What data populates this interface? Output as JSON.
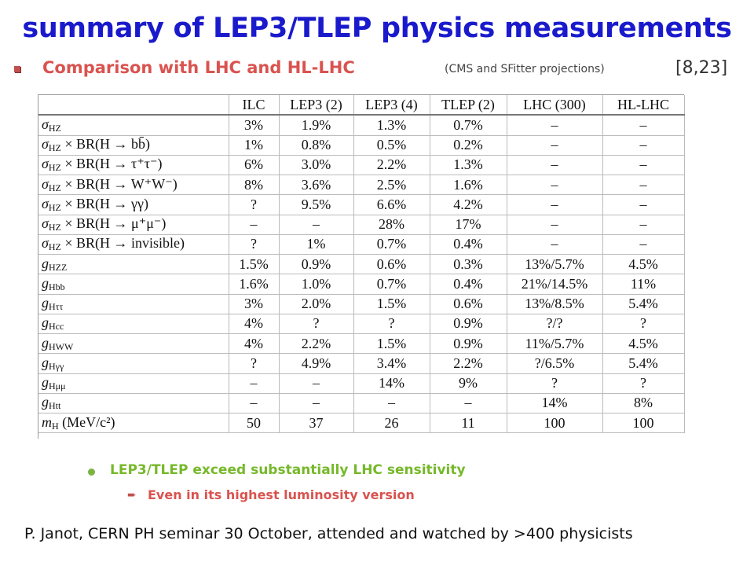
{
  "title": "summary of LEP3/TLEP physics measurements",
  "subhead": {
    "label": "Comparison with LHC and HL-LHC",
    "projection_note": "(CMS and SFitter projections)",
    "references": "[8,23]"
  },
  "chart_data": {
    "type": "table",
    "columns": [
      "",
      "ILC",
      "LEP3 (2)",
      "LEP3 (4)",
      "TLEP (2)",
      "LHC (300)",
      "HL-LHC"
    ],
    "rows": [
      {
        "sym": "σ",
        "sub": "HZ",
        "rest": "",
        "values": [
          "3%",
          "1.9%",
          "1.3%",
          "0.7%",
          "–",
          "–"
        ]
      },
      {
        "sym": "σ",
        "sub": "HZ",
        "rest": " × BR(H → bb̄)",
        "values": [
          "1%",
          "0.8%",
          "0.5%",
          "0.2%",
          "–",
          "–"
        ]
      },
      {
        "sym": "σ",
        "sub": "HZ",
        "rest": " × BR(H → τ⁺τ⁻)",
        "values": [
          "6%",
          "3.0%",
          "2.2%",
          "1.3%",
          "–",
          "–"
        ]
      },
      {
        "sym": "σ",
        "sub": "HZ",
        "rest": " × BR(H → W⁺W⁻)",
        "values": [
          "8%",
          "3.6%",
          "2.5%",
          "1.6%",
          "–",
          "–"
        ]
      },
      {
        "sym": "σ",
        "sub": "HZ",
        "rest": " × BR(H → γγ)",
        "values": [
          "?",
          "9.5%",
          "6.6%",
          "4.2%",
          "–",
          "–"
        ]
      },
      {
        "sym": "σ",
        "sub": "HZ",
        "rest": " × BR(H → μ⁺μ⁻)",
        "values": [
          "–",
          "–",
          "28%",
          "17%",
          "–",
          "–"
        ]
      },
      {
        "sym": "σ",
        "sub": "HZ",
        "rest": " × BR(H → invisible)",
        "values": [
          "?",
          "1%",
          "0.7%",
          "0.4%",
          "–",
          "–"
        ]
      },
      {
        "sym": "g",
        "sub": "HZZ",
        "rest": "",
        "values": [
          "1.5%",
          "0.9%",
          "0.6%",
          "0.3%",
          "13%/5.7%",
          "4.5%"
        ]
      },
      {
        "sym": "g",
        "sub": "Hbb",
        "rest": "",
        "values": [
          "1.6%",
          "1.0%",
          "0.7%",
          "0.4%",
          "21%/14.5%",
          "11%"
        ]
      },
      {
        "sym": "g",
        "sub": "Hττ",
        "rest": "",
        "values": [
          "3%",
          "2.0%",
          "1.5%",
          "0.6%",
          "13%/8.5%",
          "5.4%"
        ]
      },
      {
        "sym": "g",
        "sub": "Hcc",
        "rest": "",
        "values": [
          "4%",
          "?",
          "?",
          "0.9%",
          "?/?",
          "?"
        ]
      },
      {
        "sym": "g",
        "sub": "HWW",
        "rest": "",
        "values": [
          "4%",
          "2.2%",
          "1.5%",
          "0.9%",
          "11%/5.7%",
          "4.5%"
        ]
      },
      {
        "sym": "g",
        "sub": "Hγγ",
        "rest": "",
        "values": [
          "?",
          "4.9%",
          "3.4%",
          "2.2%",
          "?/6.5%",
          "5.4%"
        ]
      },
      {
        "sym": "g",
        "sub": "Hμμ",
        "rest": "",
        "values": [
          "–",
          "–",
          "14%",
          "9%",
          "?",
          "?"
        ]
      },
      {
        "sym": "g",
        "sub": "Htt",
        "rest": "",
        "values": [
          "–",
          "–",
          "–",
          "–",
          "14%",
          "8%"
        ]
      },
      {
        "sym": "m",
        "sub": "H",
        "rest": " (MeV/c²)",
        "values": [
          "50",
          "37",
          "26",
          "11",
          "100",
          "100"
        ]
      }
    ]
  },
  "bullets": {
    "main": "LEP3/TLEP exceed substantially LHC sensitivity",
    "sub": "Even in its highest luminosity version"
  },
  "footer": "P. Janot, CERN PH seminar 30 October, attended and watched by >400 physicists",
  "colors": {
    "title": "#1a1acc",
    "subhead": "#d9534f",
    "bullet_main": "#76b82a",
    "bullet_sub": "#d9534f"
  }
}
